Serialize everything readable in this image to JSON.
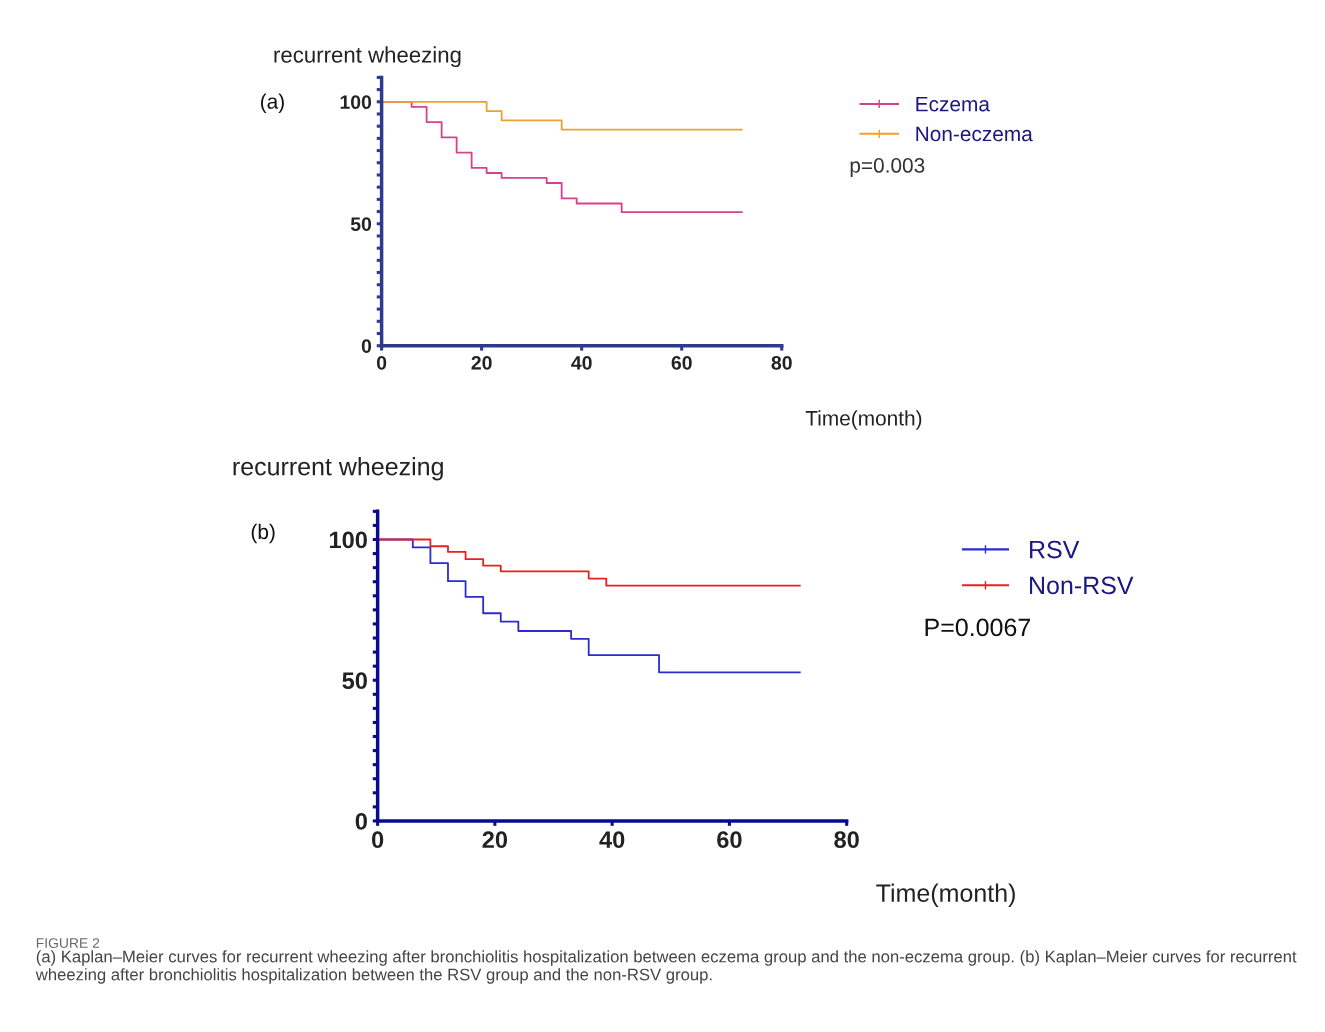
{
  "chart_data": [
    {
      "type": "step",
      "title": "recurrent wheezing",
      "xlabel": "Time(month)",
      "annotations": [
        "(a)",
        "p=0.003"
      ],
      "legend": "top right",
      "grid": false,
      "xlim": [
        0,
        80
      ],
      "xticks": [
        0,
        20,
        40,
        60,
        80
      ],
      "ylim": [
        0,
        110
      ],
      "yticks": [
        0,
        {
          "value": 5,
          "label": null
        },
        {
          "value": 10,
          "label": null
        },
        {
          "value": 15,
          "label": null
        },
        {
          "value": 20,
          "label": null
        },
        {
          "value": 25,
          "label": null
        },
        {
          "value": 30,
          "label": null
        },
        {
          "value": 35,
          "label": null
        },
        {
          "value": 40,
          "label": null
        },
        {
          "value": 45,
          "label": null
        },
        50,
        {
          "value": 55,
          "label": null
        },
        {
          "value": 60,
          "label": null
        },
        {
          "value": 65,
          "label": null
        },
        {
          "value": 70,
          "label": null
        },
        {
          "value": 75,
          "label": null
        },
        {
          "value": 80,
          "label": null
        },
        {
          "value": 85,
          "label": null
        },
        {
          "value": 90,
          "label": null
        },
        {
          "value": 95,
          "label": null
        },
        100,
        {
          "value": 105,
          "label": null
        },
        {
          "value": 110,
          "label": null
        }
      ],
      "series": [
        {
          "name": "Eczema",
          "color": "#d6418f",
          "x": [
            0,
            6,
            9,
            12,
            15,
            18,
            21,
            24,
            33,
            36,
            39,
            48,
            72
          ],
          "values": [
            100,
            97.9,
            91.7,
            85.4,
            79.2,
            72.9,
            70.8,
            68.8,
            66.7,
            60.4,
            58.3,
            54.8,
            54.8
          ]
        },
        {
          "name": "Non-eczema",
          "color": "#f0a030",
          "x": [
            0,
            21,
            24,
            36,
            72
          ],
          "values": [
            100,
            96.2,
            92.4,
            88.6,
            88.6
          ]
        }
      ]
    },
    {
      "type": "step",
      "title": "recurrent wheezing",
      "xlabel": "Time(month)",
      "annotations": [
        "(b)",
        "P=0.0067",
        "FIGURE 2",
        "(a) Kaplan–Meier curves for recurrent wheezing after bronchiolitis hospitalization between eczema group and the non-eczema group. (b) Kaplan–Meier curves for recurrent wheezing after bronchiolitis hospitalization between the RSV group and the non-RSV group."
      ],
      "legend": "top right",
      "grid": false,
      "xlim": [
        0,
        80
      ],
      "xticks": [
        0,
        20,
        40,
        60,
        80
      ],
      "ylim": [
        0,
        110
      ],
      "yticks": [
        0,
        {
          "value": 5,
          "label": null
        },
        {
          "value": 10,
          "label": null
        },
        {
          "value": 15,
          "label": null
        },
        {
          "value": 20,
          "label": null
        },
        {
          "value": 25,
          "label": null
        },
        {
          "value": 30,
          "label": null
        },
        {
          "value": 35,
          "label": null
        },
        {
          "value": 40,
          "label": null
        },
        {
          "value": 45,
          "label": null
        },
        50,
        {
          "value": 55,
          "label": null
        },
        {
          "value": 60,
          "label": null
        },
        {
          "value": 65,
          "label": null
        },
        {
          "value": 70,
          "label": null
        },
        {
          "value": 75,
          "label": null
        },
        {
          "value": 80,
          "label": null
        },
        {
          "value": 85,
          "label": null
        },
        {
          "value": 90,
          "label": null
        },
        {
          "value": 95,
          "label": null
        },
        100,
        {
          "value": 105,
          "label": null
        },
        {
          "value": 110,
          "label": null
        }
      ],
      "series": [
        {
          "name": "RSV",
          "color": "#2b2bd0",
          "x": [
            0,
            6,
            9,
            12,
            15,
            18,
            21,
            24,
            33,
            36,
            48,
            72
          ],
          "values": [
            100,
            97.2,
            91.6,
            85.2,
            79.6,
            73.8,
            70.8,
            67.5,
            64.7,
            58.9,
            52.8,
            52.8
          ]
        },
        {
          "name": "Non-RSV",
          "color": "#e82020",
          "x": [
            0,
            9,
            12,
            15,
            18,
            21,
            36,
            39,
            72
          ],
          "values": [
            100,
            97.6,
            95.6,
            93.0,
            90.7,
            88.7,
            86.1,
            83.6,
            83.6
          ]
        }
      ]
    }
  ]
}
